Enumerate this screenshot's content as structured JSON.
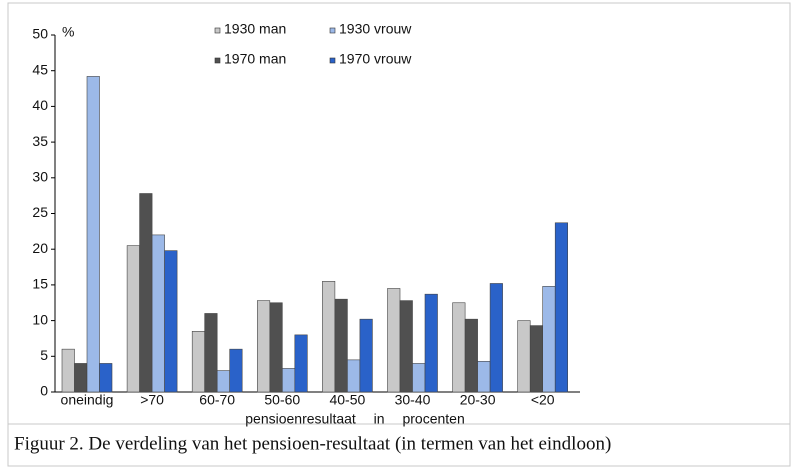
{
  "chart_data": {
    "type": "bar",
    "unit_label": "%",
    "x_label": "pensioenresultaat in procenten",
    "caption": "Figuur 2. De verdeling van het pensioen-resultaat (in termen van het eindloon)",
    "categories": [
      "oneindig",
      ">70",
      "60-70",
      "50-60",
      "40-50",
      "30-40",
      "20-30",
      "<20"
    ],
    "series": [
      {
        "name": "1930 man",
        "color": "#c8c8c8",
        "values": [
          6,
          20.5,
          8.5,
          12.8,
          15.5,
          14.5,
          12.5,
          10
        ]
      },
      {
        "name": "1970 man",
        "color": "#505050",
        "values": [
          4,
          27.8,
          11,
          12.5,
          13,
          12.8,
          10.2,
          9.3
        ]
      },
      {
        "name": "1930 vrouw",
        "color": "#9cb9e8",
        "values": [
          44.2,
          22,
          3,
          3.3,
          4.5,
          4,
          4.3,
          14.8
        ]
      },
      {
        "name": "1970 vrouw",
        "color": "#2a62c9",
        "values": [
          4,
          19.8,
          6,
          8,
          10.2,
          13.7,
          15.2,
          23.7
        ]
      }
    ],
    "ylim": [
      0,
      50
    ],
    "yticks": [
      0,
      5,
      10,
      15,
      20,
      25,
      30,
      35,
      40,
      45,
      50
    ]
  }
}
